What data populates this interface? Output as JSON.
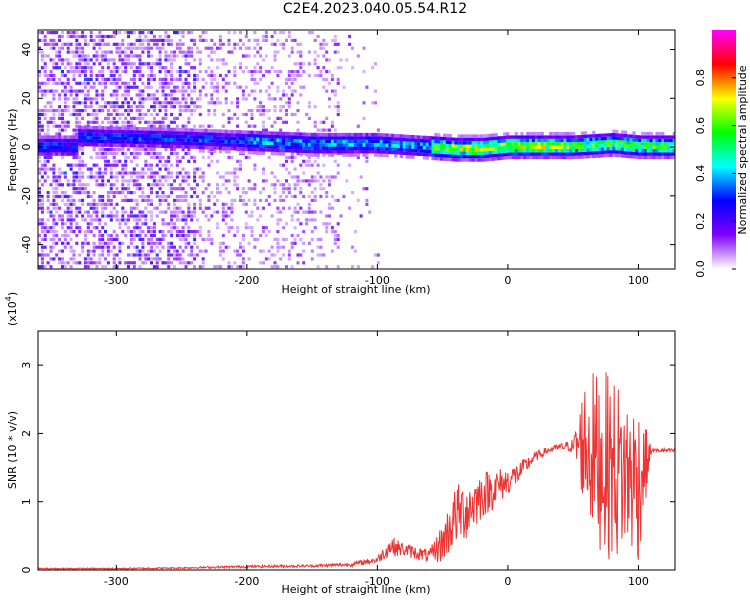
{
  "title": "C2E4.2023.040.05.54.R12",
  "chart_data": [
    {
      "type": "heatmap",
      "xlabel": "Height of straight line (km)",
      "ylabel": "Frequency (Hz)",
      "xlim": [
        -360,
        128
      ],
      "ylim": [
        -50,
        48
      ],
      "xticks": [
        -300,
        -200,
        -100,
        0,
        100
      ],
      "yticks": [
        -40,
        -20,
        0,
        20,
        40
      ],
      "colorbar": {
        "label": "Normalized spectral amplitude",
        "range": [
          0.0,
          1.0
        ],
        "ticks": [
          "0.0",
          "0.2",
          "0.4",
          "0.6",
          "0.8"
        ],
        "tick_values": [
          0.0,
          0.2,
          0.4,
          0.6,
          0.8
        ],
        "colors": [
          "#ffffff",
          "#8000ff",
          "#0000ff",
          "#00ffff",
          "#00ff00",
          "#ffff00",
          "#ff0000",
          "#ff00ff"
        ]
      },
      "ridge": [
        {
          "x": -330,
          "y": 5
        },
        {
          "x": -250,
          "y": 4
        },
        {
          "x": -200,
          "y": 3
        },
        {
          "x": -150,
          "y": 2
        },
        {
          "x": -100,
          "y": 2
        },
        {
          "x": -70,
          "y": 1
        },
        {
          "x": -40,
          "y": 0
        },
        {
          "x": -20,
          "y": 0
        },
        {
          "x": 0,
          "y": 1
        },
        {
          "x": 50,
          "y": 1
        },
        {
          "x": 80,
          "y": 2
        },
        {
          "x": 100,
          "y": 1
        },
        {
          "x": 128,
          "y": 1
        }
      ]
    },
    {
      "type": "line",
      "xlabel": "Height of straight line (km)",
      "ylabel": "SNR (10 * v/v)",
      "yscale_label": "(x10",
      "yscale_exp": "4",
      "yscale_close": ")",
      "xlim": [
        -360,
        128
      ],
      "ylim": [
        0,
        3.5
      ],
      "xticks": [
        -300,
        -200,
        -100,
        0,
        100
      ],
      "yticks": [
        0,
        1,
        2,
        3
      ],
      "color": "#ee3333",
      "x": [
        -360,
        -300,
        -250,
        -200,
        -150,
        -120,
        -100,
        -90,
        -80,
        -70,
        -60,
        -50,
        -40,
        -30,
        -20,
        -10,
        0,
        10,
        20,
        30,
        40,
        50,
        60,
        70,
        80,
        90,
        100,
        110,
        128
      ],
      "y": [
        0.02,
        0.02,
        0.03,
        0.05,
        0.06,
        0.08,
        0.15,
        0.35,
        0.3,
        0.25,
        0.2,
        0.4,
        0.8,
        0.9,
        1.1,
        1.2,
        1.3,
        1.45,
        1.65,
        1.75,
        1.8,
        1.82,
        1.85,
        1.6,
        1.5,
        1.4,
        1.3,
        1.75,
        1.75
      ],
      "spread": [
        0.01,
        0.01,
        0.01,
        0.02,
        0.02,
        0.03,
        0.05,
        0.15,
        0.1,
        0.1,
        0.1,
        0.3,
        0.45,
        0.45,
        0.35,
        0.3,
        0.2,
        0.15,
        0.08,
        0.05,
        0.05,
        0.1,
        1.1,
        1.3,
        1.4,
        1.2,
        1.2,
        0.03,
        0.03
      ]
    }
  ]
}
